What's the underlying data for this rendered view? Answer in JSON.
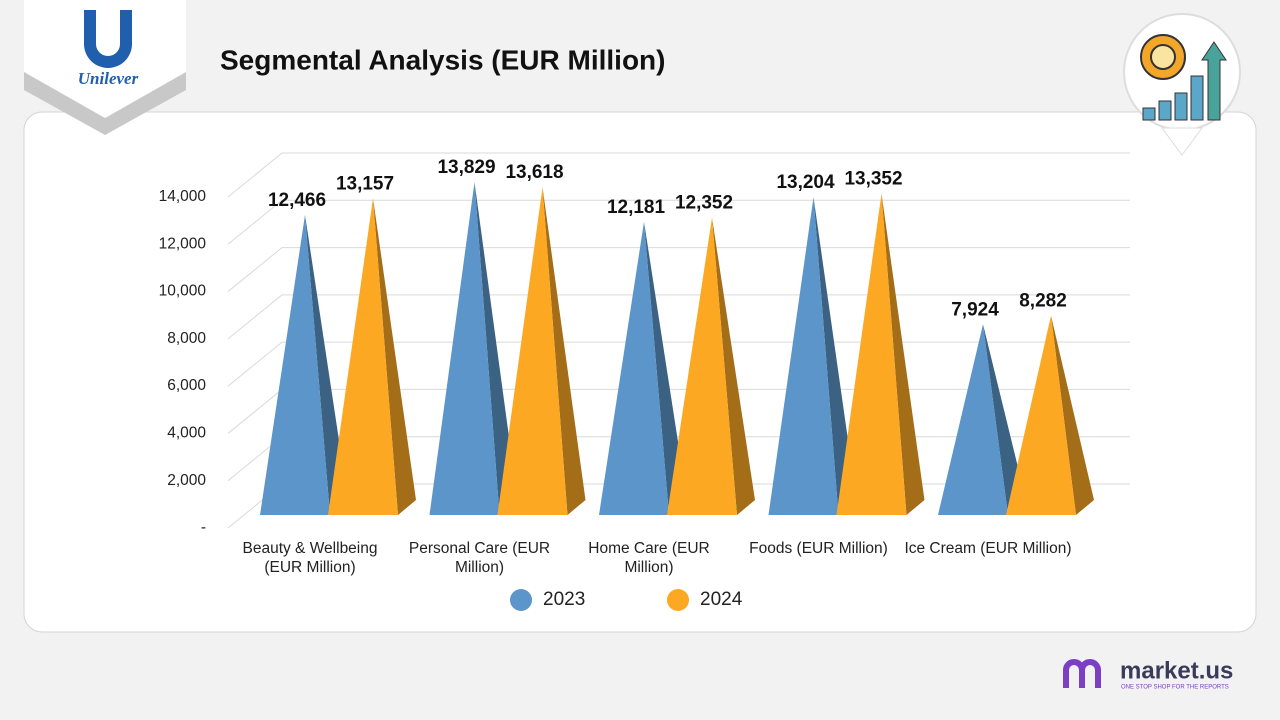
{
  "branding": {
    "logo": "Unilever",
    "footer_logo": "market.us",
    "footer_tagline": "ONE STOP SHOP FOR THE REPORTS"
  },
  "chart_data": {
    "type": "pyramid3d",
    "title": "Segmental Analysis (EUR Million)",
    "categories": [
      "Beauty & Wellbeing (EUR Million)",
      "Personal Care (EUR Million)",
      "Home Care (EUR Million)",
      "Foods (EUR Million)",
      "Ice Cream (EUR Million)"
    ],
    "series": [
      {
        "name": "2023",
        "color": "#5b95c9",
        "values": [
          12466,
          13829,
          12181,
          13204,
          7924
        ],
        "value_labels": [
          "12,466",
          "13,829",
          "12,181",
          "13,204",
          "7,924"
        ]
      },
      {
        "name": "2024",
        "color": "#fda823",
        "values": [
          13157,
          13618,
          12352,
          13352,
          8282
        ],
        "value_labels": [
          "13,157",
          "13,618",
          "12,352",
          "13,352",
          "8,282"
        ]
      }
    ],
    "ylim": [
      0,
      14000
    ],
    "yticks": [
      {
        "value": 0,
        "label": "-"
      },
      {
        "value": 2000,
        "label": "2,000"
      },
      {
        "value": 4000,
        "label": "4,000"
      },
      {
        "value": 6000,
        "label": "6,000"
      },
      {
        "value": 8000,
        "label": "8,000"
      },
      {
        "value": 10000,
        "label": "10,000"
      },
      {
        "value": 12000,
        "label": "12,000"
      },
      {
        "value": 14000,
        "label": "14,000"
      }
    ],
    "grid": true,
    "legend": "bottom"
  }
}
